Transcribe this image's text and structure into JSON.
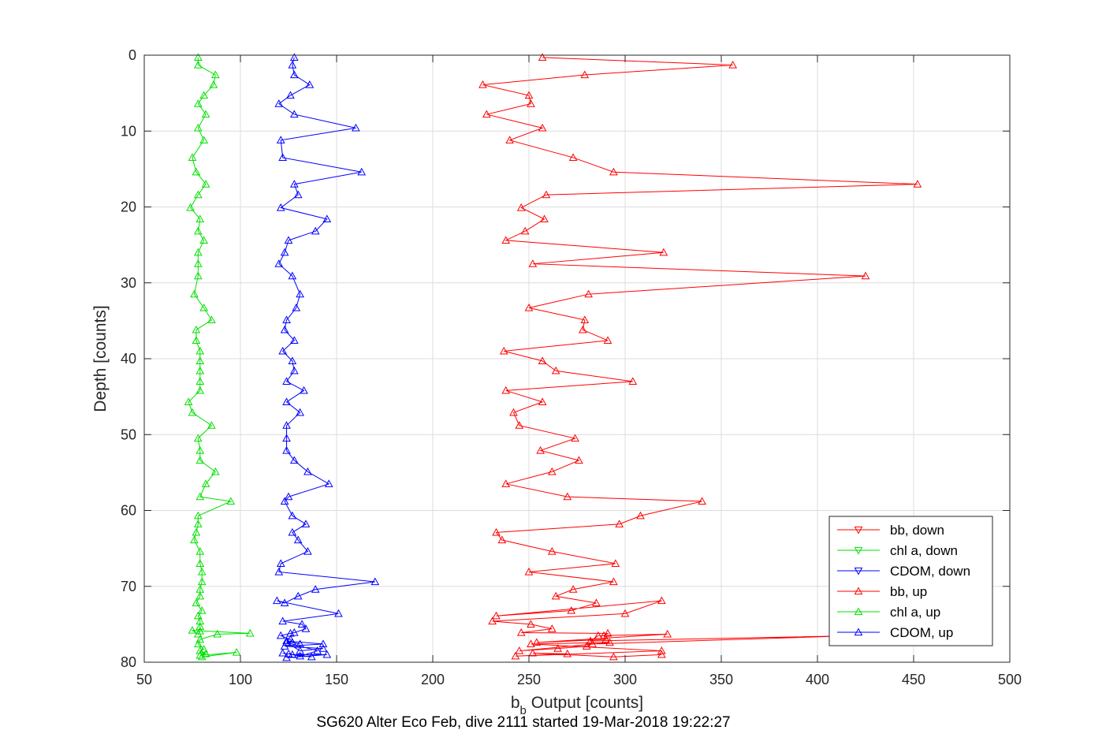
{
  "chart_data": {
    "type": "line",
    "caption": "SG620 Alter Eco Feb, dive 2111 started 19-Mar-2018 19:22:27",
    "xlabel_main": "b",
    "xlabel_sub": "b",
    "xlabel_rest": " Output [counts]",
    "ylabel": "Depth [counts]",
    "xlim": [
      50,
      500
    ],
    "ylim": [
      0,
      80
    ],
    "y_reversed": true,
    "xticks": [
      50,
      100,
      150,
      200,
      250,
      300,
      350,
      400,
      450,
      500
    ],
    "yticks": [
      0,
      10,
      20,
      30,
      40,
      50,
      60,
      70,
      80
    ],
    "grid": true,
    "legend_position": "bottom-right",
    "series": [
      {
        "name": "bb, down",
        "color": "#ff0000",
        "marker": "triangle-down",
        "x": [],
        "y": []
      },
      {
        "name": "chl a, down",
        "color": "#00e000",
        "marker": "triangle-down",
        "x": [],
        "y": []
      },
      {
        "name": "CDOM, down",
        "color": "#0000ff",
        "marker": "triangle-down",
        "x": [],
        "y": []
      },
      {
        "name": "bb, up",
        "color": "#ff0000",
        "marker": "triangle-up",
        "x": [
          257,
          356,
          279,
          226,
          250,
          251,
          228,
          257,
          240,
          273,
          294,
          452,
          259,
          246,
          258,
          248,
          238,
          320,
          252,
          425,
          281,
          250,
          279,
          278,
          291,
          237,
          257,
          264,
          304,
          238,
          257,
          242,
          245,
          274,
          256,
          276,
          262,
          238,
          270,
          340,
          308,
          297,
          233,
          236,
          262,
          295,
          250,
          294,
          273,
          264,
          285,
          272,
          233,
          319,
          300,
          231,
          251,
          262,
          246,
          291,
          289,
          290,
          254,
          322,
          286,
          282,
          420,
          283,
          280,
          265,
          245,
          292,
          251,
          319,
          243,
          270,
          252,
          294,
          319
        ],
        "y": [
          0.3,
          1.3,
          2.6,
          3.9,
          5.3,
          6.4,
          7.8,
          9.6,
          11.2,
          13.5,
          15.4,
          17,
          18.4,
          20.1,
          21.6,
          23.2,
          24.4,
          26,
          27.5,
          29.1,
          31.5,
          33.3,
          34.9,
          36.2,
          37.6,
          39,
          40.3,
          41.6,
          43,
          44.2,
          45.7,
          47.1,
          48.8,
          50.5,
          52.1,
          53.4,
          54.9,
          56.5,
          58.2,
          58.8,
          60.7,
          61.8,
          62.9,
          63.9,
          65.4,
          67,
          68.1,
          69.4,
          70.4,
          71.3,
          72.2,
          73.2,
          73.9,
          71.9,
          73.6,
          74.6,
          75,
          75.6,
          76.1,
          76.2,
          76.5,
          77,
          77.4,
          76.3,
          76.5,
          77.2,
          76.5,
          77.6,
          77.9,
          78.2,
          78.5,
          77.4,
          77.6,
          78.5,
          79.2,
          78.9,
          78.8,
          79.3,
          79
        ],
        "note": ""
      },
      {
        "name": "chl a, up",
        "color": "#00e000",
        "marker": "triangle-up",
        "x": [
          78,
          78,
          87,
          86,
          81,
          78,
          82,
          78,
          81,
          75,
          77,
          82,
          78,
          74,
          79,
          78,
          81,
          78,
          78,
          78,
          76,
          81,
          85,
          77,
          77,
          79,
          79,
          79,
          79,
          79,
          73,
          75,
          85,
          78,
          79,
          79,
          87,
          82,
          79,
          95,
          78,
          78,
          77,
          76,
          79,
          79,
          80,
          80,
          79,
          79,
          77,
          80,
          78,
          79,
          79,
          79,
          78,
          75,
          105,
          88,
          79,
          78,
          81,
          79,
          82,
          79,
          98,
          80
        ],
        "y": [
          0.3,
          1.3,
          2.6,
          3.9,
          5.3,
          6.4,
          7.8,
          9.6,
          11.2,
          13.5,
          15.4,
          17,
          18.4,
          20.1,
          21.6,
          23.2,
          24.4,
          26,
          27.5,
          29.1,
          31.5,
          33.3,
          34.9,
          36.2,
          37.6,
          39,
          40.3,
          41.6,
          43,
          44.2,
          45.7,
          47.1,
          48.8,
          50.5,
          52.1,
          53.4,
          54.9,
          56.5,
          58.2,
          58.8,
          60.7,
          61.8,
          62.9,
          63.9,
          65.4,
          67,
          68.1,
          69.4,
          70.4,
          71.3,
          72.2,
          73.2,
          73.9,
          74.6,
          75.3,
          75.9,
          76.3,
          75.8,
          76.2,
          76.3,
          77,
          77.6,
          78.3,
          78.5,
          78.9,
          79.1,
          78.7,
          79.3
        ]
      },
      {
        "name": "CDOM, up",
        "color": "#0000ff",
        "marker": "triangle-up",
        "x": [
          128,
          127,
          128,
          136,
          126,
          120,
          128,
          160,
          121,
          122,
          163,
          128,
          130,
          121,
          145,
          139,
          125,
          123,
          120,
          127,
          131,
          129,
          124,
          123,
          128,
          122,
          127,
          128,
          124,
          133,
          124,
          131,
          124,
          124,
          124,
          128,
          135,
          146,
          125,
          123,
          127,
          134,
          127,
          130,
          135,
          121,
          120,
          170,
          139,
          130,
          123,
          119,
          151,
          122,
          132,
          134,
          128,
          126,
          121,
          126,
          127,
          131,
          124,
          143,
          123,
          143,
          131,
          124,
          140,
          131,
          125,
          122,
          137,
          127,
          145,
          124
        ],
        "y": [
          0.3,
          1.3,
          2.6,
          3.9,
          5.3,
          6.4,
          7.8,
          9.6,
          11.2,
          13.5,
          15.4,
          17,
          18.4,
          20.1,
          21.6,
          23.2,
          24.4,
          26,
          27.5,
          29.1,
          31.5,
          33.3,
          34.9,
          36.2,
          37.6,
          39,
          40.3,
          41.6,
          43,
          44.2,
          45.7,
          47.1,
          48.8,
          50.5,
          52.1,
          53.4,
          54.9,
          56.5,
          58.2,
          58.8,
          60.7,
          61.8,
          62.9,
          63.9,
          65.4,
          67,
          68.1,
          69.4,
          70.4,
          71.3,
          72.2,
          71.9,
          73.6,
          74.6,
          75,
          75.6,
          76.1,
          76.2,
          76.5,
          77,
          77.4,
          77.6,
          77.2,
          77.6,
          77.9,
          78.2,
          78.5,
          77.4,
          78.5,
          79.2,
          78.9,
          78.8,
          79.3,
          79,
          79,
          79.4
        ]
      }
    ]
  }
}
